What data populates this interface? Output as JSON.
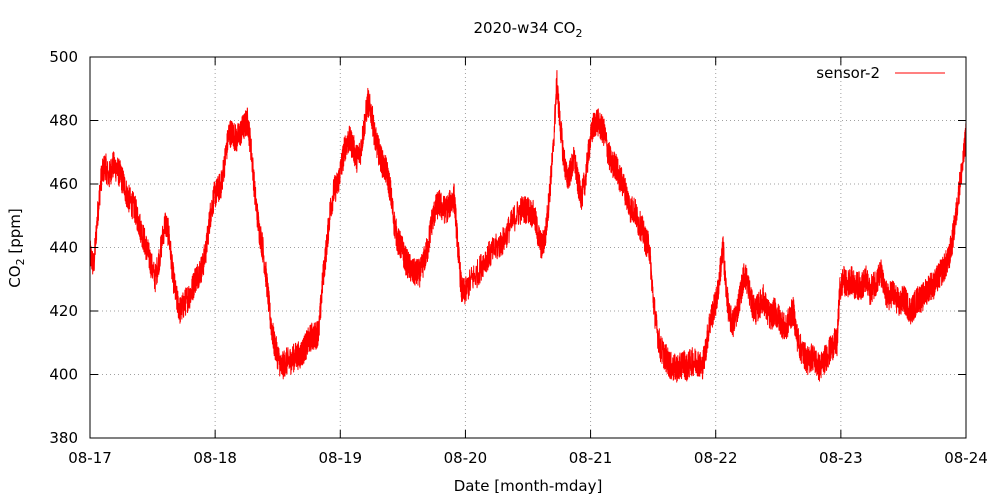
{
  "chart_data": {
    "type": "line",
    "title": "2020-w34 CO",
    "title_subscript": "2",
    "xlabel": "Date [month-mday]",
    "ylabel": "CO",
    "ylabel_subscript": "2",
    "ylabel_unit": " [ppm]",
    "xlim": [
      "08-17",
      "08-24"
    ],
    "ylim": [
      380,
      500
    ],
    "x_ticks": [
      "08-17",
      "08-18",
      "08-19",
      "08-20",
      "08-21",
      "08-22",
      "08-23",
      "08-24"
    ],
    "y_ticks": [
      380,
      400,
      420,
      440,
      460,
      480,
      500
    ],
    "grid": true,
    "legend_position": "top-right",
    "series": [
      {
        "name": "sensor-2",
        "color": "#ff0000",
        "x_unit": "days since 08-17 00:00",
        "points": [
          [
            0.0,
            438
          ],
          [
            0.03,
            434
          ],
          [
            0.06,
            450
          ],
          [
            0.09,
            462
          ],
          [
            0.12,
            466
          ],
          [
            0.15,
            462
          ],
          [
            0.18,
            466
          ],
          [
            0.21,
            465
          ],
          [
            0.24,
            463
          ],
          [
            0.27,
            460
          ],
          [
            0.3,
            456
          ],
          [
            0.33,
            454
          ],
          [
            0.36,
            452
          ],
          [
            0.39,
            448
          ],
          [
            0.42,
            444
          ],
          [
            0.45,
            440
          ],
          [
            0.48,
            436
          ],
          [
            0.52,
            430
          ],
          [
            0.56,
            438
          ],
          [
            0.6,
            448
          ],
          [
            0.63,
            444
          ],
          [
            0.66,
            432
          ],
          [
            0.69,
            424
          ],
          [
            0.72,
            420
          ],
          [
            0.75,
            422
          ],
          [
            0.78,
            424
          ],
          [
            0.81,
            426
          ],
          [
            0.84,
            430
          ],
          [
            0.87,
            432
          ],
          [
            0.9,
            434
          ],
          [
            0.93,
            440
          ],
          [
            0.96,
            450
          ],
          [
            0.99,
            456
          ],
          [
            1.02,
            458
          ],
          [
            1.05,
            460
          ],
          [
            1.08,
            468
          ],
          [
            1.11,
            476
          ],
          [
            1.14,
            476
          ],
          [
            1.17,
            474
          ],
          [
            1.2,
            476
          ],
          [
            1.23,
            478
          ],
          [
            1.26,
            480
          ],
          [
            1.29,
            470
          ],
          [
            1.32,
            456
          ],
          [
            1.35,
            446
          ],
          [
            1.38,
            440
          ],
          [
            1.41,
            430
          ],
          [
            1.44,
            418
          ],
          [
            1.47,
            410
          ],
          [
            1.5,
            406
          ],
          [
            1.53,
            402
          ],
          [
            1.56,
            404
          ],
          [
            1.59,
            404
          ],
          [
            1.62,
            405
          ],
          [
            1.65,
            406
          ],
          [
            1.68,
            406
          ],
          [
            1.71,
            408
          ],
          [
            1.74,
            410
          ],
          [
            1.77,
            412
          ],
          [
            1.8,
            412
          ],
          [
            1.83,
            414
          ],
          [
            1.86,
            430
          ],
          [
            1.89,
            440
          ],
          [
            1.92,
            452
          ],
          [
            1.95,
            458
          ],
          [
            1.98,
            460
          ],
          [
            2.01,
            466
          ],
          [
            2.04,
            472
          ],
          [
            2.07,
            474
          ],
          [
            2.1,
            472
          ],
          [
            2.13,
            468
          ],
          [
            2.16,
            470
          ],
          [
            2.19,
            478
          ],
          [
            2.22,
            486
          ],
          [
            2.25,
            482
          ],
          [
            2.28,
            474
          ],
          [
            2.31,
            470
          ],
          [
            2.34,
            466
          ],
          [
            2.37,
            464
          ],
          [
            2.4,
            458
          ],
          [
            2.43,
            448
          ],
          [
            2.46,
            442
          ],
          [
            2.49,
            440
          ],
          [
            2.52,
            436
          ],
          [
            2.55,
            434
          ],
          [
            2.58,
            432
          ],
          [
            2.61,
            432
          ],
          [
            2.64,
            432
          ],
          [
            2.67,
            436
          ],
          [
            2.7,
            440
          ],
          [
            2.73,
            448
          ],
          [
            2.76,
            452
          ],
          [
            2.79,
            454
          ],
          [
            2.82,
            452
          ],
          [
            2.85,
            452
          ],
          [
            2.88,
            454
          ],
          [
            2.91,
            456
          ],
          [
            2.94,
            440
          ],
          [
            2.97,
            426
          ],
          [
            3.0,
            426
          ],
          [
            3.05,
            430
          ],
          [
            3.1,
            432
          ],
          [
            3.15,
            436
          ],
          [
            3.2,
            438
          ],
          [
            3.25,
            440
          ],
          [
            3.3,
            442
          ],
          [
            3.35,
            446
          ],
          [
            3.4,
            450
          ],
          [
            3.45,
            452
          ],
          [
            3.5,
            452
          ],
          [
            3.55,
            450
          ],
          [
            3.58,
            444
          ],
          [
            3.61,
            440
          ],
          [
            3.64,
            444
          ],
          [
            3.67,
            456
          ],
          [
            3.7,
            470
          ],
          [
            3.73,
            492
          ],
          [
            3.75,
            482
          ],
          [
            3.78,
            470
          ],
          [
            3.81,
            462
          ],
          [
            3.84,
            464
          ],
          [
            3.87,
            468
          ],
          [
            3.9,
            460
          ],
          [
            3.93,
            456
          ],
          [
            3.96,
            462
          ],
          [
            3.99,
            472
          ],
          [
            4.02,
            478
          ],
          [
            4.05,
            480
          ],
          [
            4.08,
            478
          ],
          [
            4.11,
            476
          ],
          [
            4.14,
            470
          ],
          [
            4.17,
            466
          ],
          [
            4.2,
            466
          ],
          [
            4.23,
            462
          ],
          [
            4.26,
            460
          ],
          [
            4.29,
            456
          ],
          [
            4.32,
            452
          ],
          [
            4.35,
            452
          ],
          [
            4.38,
            448
          ],
          [
            4.41,
            446
          ],
          [
            4.44,
            442
          ],
          [
            4.47,
            440
          ],
          [
            4.5,
            424
          ],
          [
            4.53,
            414
          ],
          [
            4.56,
            408
          ],
          [
            4.59,
            406
          ],
          [
            4.62,
            404
          ],
          [
            4.65,
            402
          ],
          [
            4.68,
            402
          ],
          [
            4.71,
            402
          ],
          [
            4.74,
            404
          ],
          [
            4.77,
            402
          ],
          [
            4.8,
            404
          ],
          [
            4.83,
            404
          ],
          [
            4.86,
            404
          ],
          [
            4.89,
            402
          ],
          [
            4.92,
            408
          ],
          [
            4.95,
            416
          ],
          [
            4.98,
            420
          ],
          [
            5.01,
            424
          ],
          [
            5.04,
            434
          ],
          [
            5.06,
            440
          ],
          [
            5.08,
            428
          ],
          [
            5.11,
            418
          ],
          [
            5.14,
            416
          ],
          [
            5.17,
            420
          ],
          [
            5.2,
            426
          ],
          [
            5.23,
            432
          ],
          [
            5.26,
            428
          ],
          [
            5.29,
            422
          ],
          [
            5.32,
            420
          ],
          [
            5.35,
            422
          ],
          [
            5.38,
            424
          ],
          [
            5.41,
            420
          ],
          [
            5.44,
            418
          ],
          [
            5.47,
            420
          ],
          [
            5.5,
            418
          ],
          [
            5.53,
            416
          ],
          [
            5.56,
            414
          ],
          [
            5.59,
            418
          ],
          [
            5.62,
            420
          ],
          [
            5.65,
            412
          ],
          [
            5.68,
            408
          ],
          [
            5.71,
            406
          ],
          [
            5.74,
            404
          ],
          [
            5.77,
            406
          ],
          [
            5.8,
            404
          ],
          [
            5.83,
            402
          ],
          [
            5.86,
            404
          ],
          [
            5.89,
            406
          ],
          [
            5.92,
            408
          ],
          [
            5.95,
            410
          ],
          [
            5.97,
            410
          ],
          [
            5.99,
            426
          ],
          [
            6.02,
            430
          ],
          [
            6.05,
            428
          ],
          [
            6.08,
            430
          ],
          [
            6.11,
            428
          ],
          [
            6.14,
            428
          ],
          [
            6.17,
            428
          ],
          [
            6.2,
            430
          ],
          [
            6.23,
            426
          ],
          [
            6.26,
            428
          ],
          [
            6.29,
            430
          ],
          [
            6.32,
            432
          ],
          [
            6.35,
            426
          ],
          [
            6.38,
            424
          ],
          [
            6.41,
            426
          ],
          [
            6.44,
            424
          ],
          [
            6.47,
            422
          ],
          [
            6.5,
            424
          ],
          [
            6.53,
            422
          ],
          [
            6.56,
            420
          ],
          [
            6.59,
            422
          ],
          [
            6.62,
            424
          ],
          [
            6.65,
            424
          ],
          [
            6.68,
            426
          ],
          [
            6.71,
            428
          ],
          [
            6.74,
            428
          ],
          [
            6.77,
            430
          ],
          [
            6.8,
            432
          ],
          [
            6.83,
            434
          ],
          [
            6.86,
            436
          ],
          [
            6.89,
            442
          ],
          [
            6.92,
            450
          ],
          [
            6.95,
            460
          ],
          [
            6.98,
            468
          ],
          [
            7.0,
            476
          ]
        ]
      }
    ]
  }
}
